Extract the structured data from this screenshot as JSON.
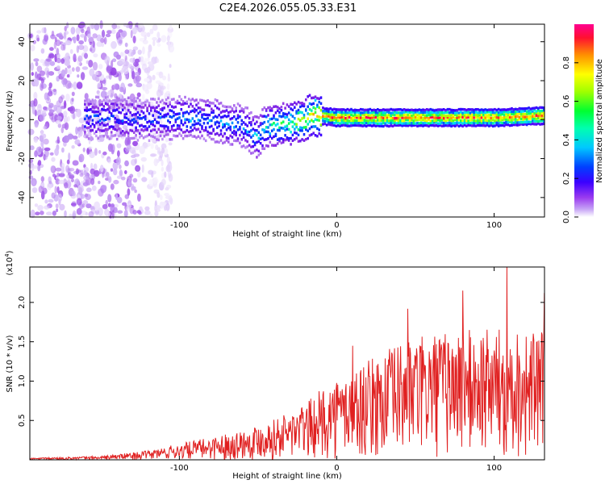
{
  "figure": {
    "title": "C2E4.2026.055.05.33.E31"
  },
  "chart_data": [
    {
      "id": "spectrogram",
      "type": "heatmap",
      "xlabel": "Height of straight line (km)",
      "ylabel": "Frequency (Hz)",
      "xlim": [
        -195,
        132
      ],
      "ylim": [
        -50,
        49
      ],
      "x_ticks": [
        -100,
        0,
        100
      ],
      "y_ticks": [
        -40,
        -20,
        0,
        20,
        40
      ],
      "colorbar": {
        "label": "Normalized spectral amplitude",
        "range": [
          0,
          1
        ],
        "ticks": [
          0.0,
          0.2,
          0.4,
          0.6,
          0.8
        ],
        "colormap": [
          "#ffffff",
          "#c7a5f6",
          "#8b2be2",
          "#3b00ff",
          "#0040ff",
          "#00e0ff",
          "#00ff60",
          "#90ff00",
          "#ffff00",
          "#ff8800",
          "#ff0040",
          "#ff0080"
        ]
      },
      "ridge": {
        "description_points_x": [
          -150,
          -120,
          -100,
          -80,
          -70,
          -60,
          -55,
          -50,
          -45,
          -40,
          -30,
          -20,
          -15,
          -10,
          0,
          20,
          50,
          80,
          100,
          130
        ],
        "frequency_hz": [
          1,
          0,
          1,
          0,
          -2,
          -3,
          -6,
          -9,
          -3,
          -3,
          -2,
          0,
          3,
          2,
          1,
          1,
          1,
          1,
          1,
          2
        ],
        "peak_amplitude": [
          0.4,
          0.4,
          0.45,
          0.45,
          0.45,
          0.45,
          0.45,
          0.5,
          0.55,
          0.6,
          0.65,
          0.75,
          0.8,
          0.85,
          0.95,
          0.95,
          0.95,
          0.95,
          0.95,
          0.95
        ]
      },
      "noise_region_x": [
        -195,
        -125
      ]
    },
    {
      "id": "snr",
      "type": "line",
      "xlabel": "Height of straight line (km)",
      "ylabel": "SNR (10 * v/v)",
      "y_exponent_label": "(x10",
      "y_exponent": "4",
      "xlim": [
        -195,
        132
      ],
      "ylim": [
        0,
        2.45
      ],
      "x_ticks": [
        -100,
        0,
        100
      ],
      "y_ticks": [
        0.5,
        1.0,
        1.5,
        2.0
      ],
      "y_tick_labels": [
        "0.5",
        "1.0",
        "1.5",
        "2.0"
      ],
      "series": [
        {
          "name": "SNR",
          "color": "#e02020",
          "envelope_x": [
            -195,
            -150,
            -120,
            -100,
            -80,
            -60,
            -40,
            -20,
            -10,
            0,
            10,
            20,
            30,
            40,
            50,
            60,
            70,
            80,
            90,
            100,
            110,
            120,
            132
          ],
          "envelope_y": [
            0.02,
            0.04,
            0.1,
            0.18,
            0.25,
            0.33,
            0.45,
            0.62,
            0.78,
            0.9,
            1.0,
            1.1,
            1.2,
            1.3,
            1.35,
            1.4,
            1.42,
            1.45,
            1.45,
            1.45,
            1.48,
            1.45,
            1.4
          ],
          "notable_peaks": [
            {
              "x": 108,
              "y": 2.45
            },
            {
              "x": 80,
              "y": 2.15
            },
            {
              "x": 132,
              "y": 2.12
            },
            {
              "x": 45,
              "y": 1.92
            },
            {
              "x": 10,
              "y": 1.45
            }
          ]
        }
      ]
    }
  ]
}
